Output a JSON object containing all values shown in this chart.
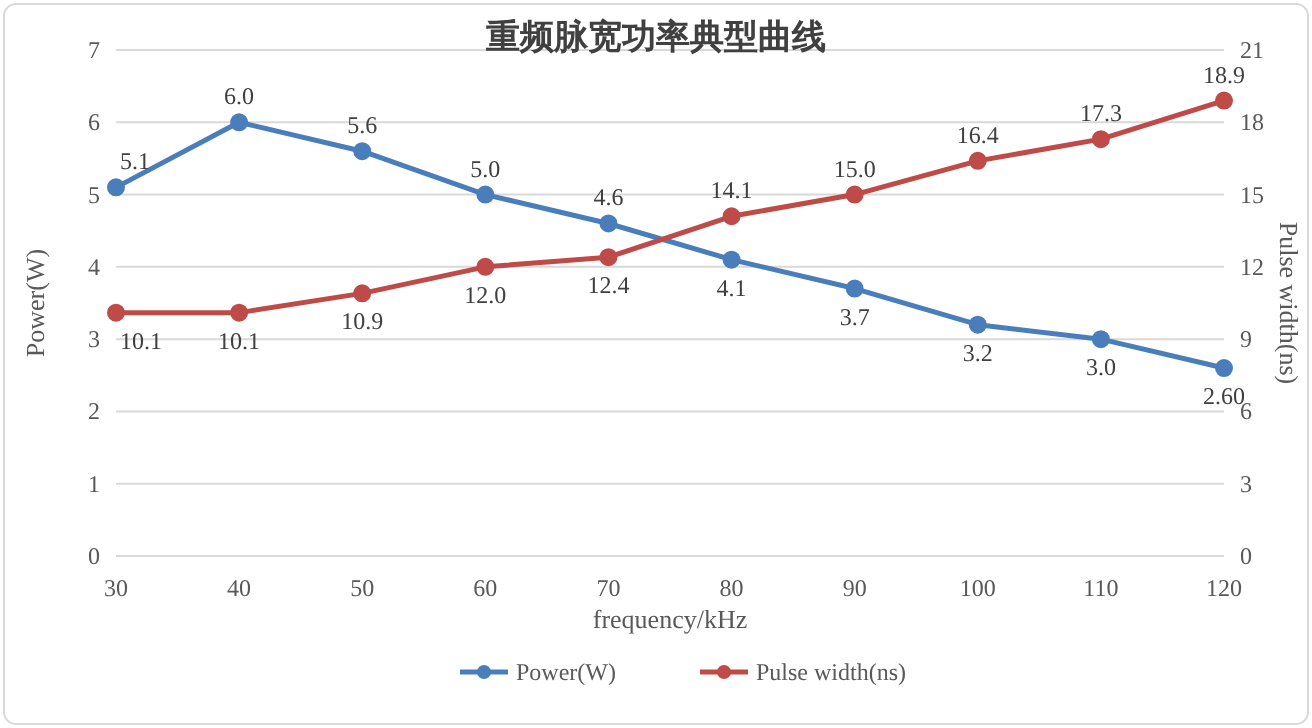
{
  "chart_data": {
    "type": "line",
    "title": "重频脉宽功率典型曲线",
    "xlabel": "frequency/kHz",
    "ylabel": "Power(W)",
    "y2label": "Pulse width(ns)",
    "x": [
      30,
      40,
      50,
      60,
      70,
      80,
      90,
      100,
      110,
      120
    ],
    "xlim": [
      30,
      120
    ],
    "xticks": [
      30,
      40,
      50,
      60,
      70,
      80,
      90,
      100,
      110,
      120
    ],
    "ylim": [
      0,
      7
    ],
    "yticks": [
      0,
      1,
      2,
      3,
      4,
      5,
      6,
      7
    ],
    "y2lim": [
      0,
      21
    ],
    "y2ticks": [
      0,
      3,
      6,
      9,
      12,
      15,
      18,
      21
    ],
    "series": [
      {
        "name": "Power(W)",
        "color": "#4a7ebb",
        "values": [
          5.1,
          6.0,
          5.6,
          5.0,
          4.6,
          4.1,
          3.7,
          3.2,
          3.0,
          2.6
        ],
        "value_labels": [
          "5.1",
          "6.0",
          "5.6",
          "5.0",
          "4.6",
          "4.1",
          "3.7",
          "3.2",
          "3.0",
          "2.60"
        ]
      },
      {
        "name": "Pulse width(ns)",
        "color": "#be4b48",
        "axis": "y2",
        "values": [
          10.1,
          10.1,
          10.9,
          12.0,
          12.4,
          14.1,
          15.0,
          16.4,
          17.3,
          18.9
        ],
        "value_labels": [
          "10.1",
          "10.1",
          "10.9",
          "12.0",
          "12.4",
          "14.1",
          "15.0",
          "16.4",
          "17.3",
          "18.9"
        ]
      }
    ],
    "grid": "y",
    "legend": "bottom",
    "marker": "circle",
    "line_style": "solid"
  }
}
